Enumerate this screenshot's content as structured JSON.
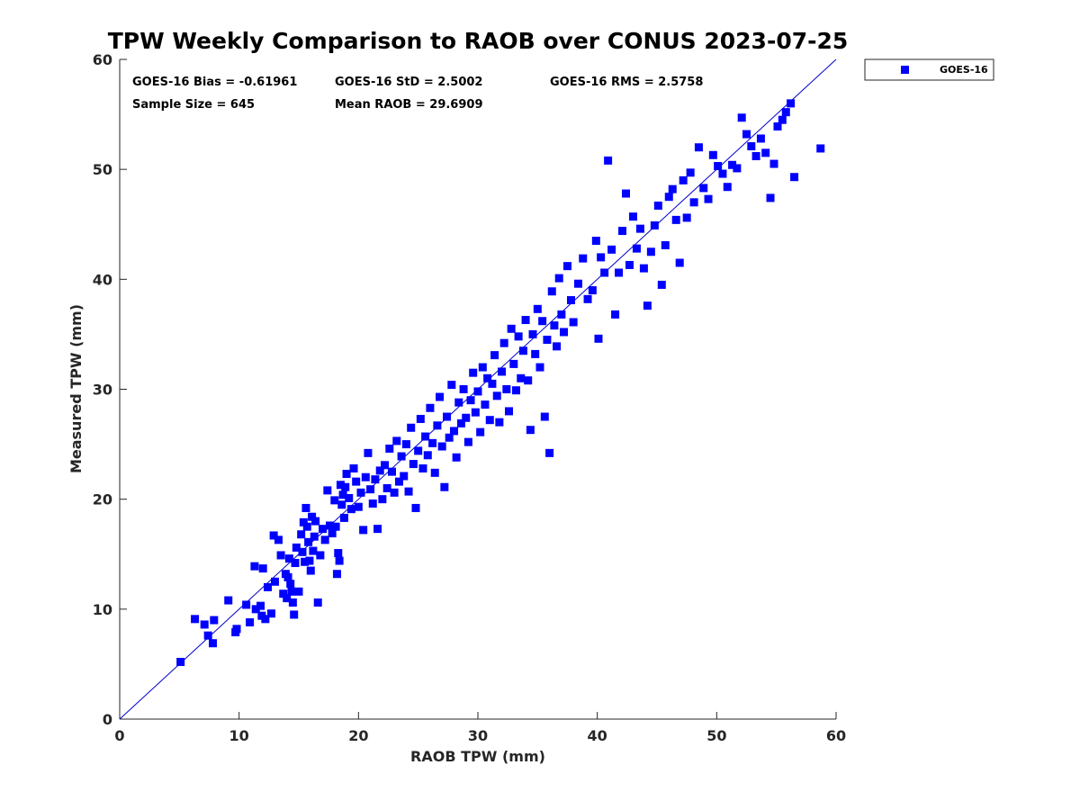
{
  "chart_data": {
    "type": "scatter",
    "title": "TPW Weekly Comparison to RAOB over CONUS 2023-07-25",
    "xlabel": "RAOB TPW (mm)",
    "ylabel": "Measured TPW (mm)",
    "xlim": [
      0,
      60
    ],
    "ylim": [
      0,
      60
    ],
    "xticks": [
      "0",
      "10",
      "20",
      "30",
      "40",
      "50",
      "60"
    ],
    "yticks": [
      "0",
      "10",
      "20",
      "30",
      "40",
      "50",
      "60"
    ],
    "grid": false,
    "legend_position": "outside-top-right",
    "reference_line": {
      "label": "1:1",
      "from": [
        0,
        0
      ],
      "to": [
        60,
        60
      ],
      "color": "#0000cc"
    },
    "stats": {
      "bias": "GOES-16 Bias = -0.61961",
      "std": "GOES-16 StD = 2.5002",
      "rms": "GOES-16 RMS = 2.5758",
      "sample_size": "Sample Size = 645",
      "mean_raob": "Mean RAOB = 29.6909"
    },
    "series": [
      {
        "name": "GOES-16",
        "color": "#0000ff",
        "marker": "square",
        "points": [
          [
            5.1,
            5.2
          ],
          [
            6.3,
            9.1
          ],
          [
            7.1,
            8.6
          ],
          [
            7.4,
            7.6
          ],
          [
            7.8,
            6.9
          ],
          [
            7.9,
            9.0
          ],
          [
            9.1,
            10.8
          ],
          [
            9.8,
            8.2
          ],
          [
            9.7,
            7.9
          ],
          [
            10.6,
            10.4
          ],
          [
            10.9,
            8.8
          ],
          [
            11.3,
            13.9
          ],
          [
            11.4,
            10.0
          ],
          [
            11.8,
            10.3
          ],
          [
            11.9,
            9.4
          ],
          [
            12.0,
            13.7
          ],
          [
            12.2,
            9.1
          ],
          [
            12.4,
            12.0
          ],
          [
            12.7,
            9.6
          ],
          [
            12.9,
            16.7
          ],
          [
            13.0,
            12.5
          ],
          [
            13.3,
            16.3
          ],
          [
            13.5,
            14.9
          ],
          [
            13.7,
            11.4
          ],
          [
            13.9,
            13.2
          ],
          [
            14.0,
            11.0
          ],
          [
            14.1,
            12.9
          ],
          [
            14.2,
            14.6
          ],
          [
            14.3,
            12.3
          ],
          [
            14.4,
            11.6
          ],
          [
            14.5,
            10.6
          ],
          [
            14.6,
            9.5
          ],
          [
            14.7,
            14.2
          ],
          [
            14.8,
            15.6
          ],
          [
            15.0,
            11.6
          ],
          [
            15.2,
            16.8
          ],
          [
            15.3,
            15.2
          ],
          [
            15.4,
            17.9
          ],
          [
            15.5,
            14.3
          ],
          [
            15.6,
            19.2
          ],
          [
            15.7,
            17.5
          ],
          [
            15.8,
            16.1
          ],
          [
            15.9,
            14.4
          ],
          [
            16.0,
            13.5
          ],
          [
            16.1,
            18.4
          ],
          [
            16.2,
            15.3
          ],
          [
            16.3,
            16.6
          ],
          [
            16.4,
            18.0
          ],
          [
            16.6,
            10.6
          ],
          [
            16.8,
            14.9
          ],
          [
            17.0,
            17.3
          ],
          [
            17.2,
            16.3
          ],
          [
            17.4,
            20.8
          ],
          [
            17.6,
            17.6
          ],
          [
            17.8,
            16.9
          ],
          [
            18.0,
            19.9
          ],
          [
            18.1,
            17.5
          ],
          [
            18.2,
            13.2
          ],
          [
            18.3,
            15.1
          ],
          [
            18.4,
            14.4
          ],
          [
            18.5,
            21.3
          ],
          [
            18.6,
            19.5
          ],
          [
            18.7,
            20.4
          ],
          [
            18.8,
            18.3
          ],
          [
            18.9,
            21.1
          ],
          [
            19.0,
            22.3
          ],
          [
            19.2,
            20.1
          ],
          [
            19.4,
            19.1
          ],
          [
            19.6,
            22.8
          ],
          [
            19.8,
            21.6
          ],
          [
            20.0,
            19.3
          ],
          [
            20.2,
            20.6
          ],
          [
            20.4,
            17.2
          ],
          [
            20.6,
            22.0
          ],
          [
            20.8,
            24.2
          ],
          [
            21.0,
            20.9
          ],
          [
            21.2,
            19.6
          ],
          [
            21.4,
            21.8
          ],
          [
            21.6,
            17.3
          ],
          [
            21.8,
            22.6
          ],
          [
            22.0,
            20.0
          ],
          [
            22.2,
            23.1
          ],
          [
            22.4,
            21.0
          ],
          [
            22.6,
            24.6
          ],
          [
            22.8,
            22.5
          ],
          [
            23.0,
            20.6
          ],
          [
            23.2,
            25.3
          ],
          [
            23.4,
            21.6
          ],
          [
            23.6,
            23.9
          ],
          [
            23.8,
            22.1
          ],
          [
            24.0,
            25.0
          ],
          [
            24.2,
            20.7
          ],
          [
            24.4,
            26.5
          ],
          [
            24.6,
            23.2
          ],
          [
            24.8,
            19.2
          ],
          [
            25.0,
            24.4
          ],
          [
            25.2,
            27.3
          ],
          [
            25.4,
            22.8
          ],
          [
            25.6,
            25.7
          ],
          [
            25.8,
            24.0
          ],
          [
            26.0,
            28.3
          ],
          [
            26.2,
            25.1
          ],
          [
            26.4,
            22.4
          ],
          [
            26.6,
            26.7
          ],
          [
            26.8,
            29.3
          ],
          [
            27.0,
            24.8
          ],
          [
            27.2,
            21.1
          ],
          [
            27.4,
            27.5
          ],
          [
            27.6,
            25.6
          ],
          [
            27.8,
            30.4
          ],
          [
            28.0,
            26.2
          ],
          [
            28.2,
            23.8
          ],
          [
            28.4,
            28.8
          ],
          [
            28.6,
            26.9
          ],
          [
            28.8,
            30.0
          ],
          [
            29.0,
            27.4
          ],
          [
            29.2,
            25.2
          ],
          [
            29.4,
            29.0
          ],
          [
            29.6,
            31.5
          ],
          [
            29.8,
            27.9
          ],
          [
            30.0,
            29.8
          ],
          [
            30.2,
            26.1
          ],
          [
            30.4,
            32.0
          ],
          [
            30.6,
            28.6
          ],
          [
            30.8,
            31.0
          ],
          [
            31.0,
            27.2
          ],
          [
            31.2,
            30.5
          ],
          [
            31.4,
            33.1
          ],
          [
            31.6,
            29.4
          ],
          [
            31.8,
            27.0
          ],
          [
            32.0,
            31.6
          ],
          [
            32.2,
            34.2
          ],
          [
            32.4,
            30.0
          ],
          [
            32.6,
            28.0
          ],
          [
            32.8,
            35.5
          ],
          [
            33.0,
            32.3
          ],
          [
            33.2,
            29.9
          ],
          [
            33.4,
            34.8
          ],
          [
            33.6,
            31.0
          ],
          [
            33.8,
            33.5
          ],
          [
            34.0,
            36.3
          ],
          [
            34.2,
            30.8
          ],
          [
            34.4,
            26.3
          ],
          [
            34.6,
            35.0
          ],
          [
            34.8,
            33.2
          ],
          [
            35.0,
            37.3
          ],
          [
            35.2,
            32.0
          ],
          [
            35.4,
            36.2
          ],
          [
            35.6,
            27.5
          ],
          [
            35.8,
            34.5
          ],
          [
            36.0,
            24.2
          ],
          [
            36.2,
            38.9
          ],
          [
            36.4,
            35.8
          ],
          [
            36.6,
            33.9
          ],
          [
            36.8,
            40.1
          ],
          [
            37.0,
            36.8
          ],
          [
            37.2,
            35.2
          ],
          [
            37.5,
            41.2
          ],
          [
            37.8,
            38.1
          ],
          [
            38.0,
            36.1
          ],
          [
            38.4,
            39.6
          ],
          [
            38.8,
            41.9
          ],
          [
            39.2,
            38.2
          ],
          [
            39.6,
            39.0
          ],
          [
            39.9,
            43.5
          ],
          [
            40.1,
            34.6
          ],
          [
            40.3,
            42.0
          ],
          [
            40.6,
            40.6
          ],
          [
            40.9,
            50.8
          ],
          [
            41.2,
            42.7
          ],
          [
            41.5,
            36.8
          ],
          [
            41.8,
            40.6
          ],
          [
            42.1,
            44.4
          ],
          [
            42.4,
            47.8
          ],
          [
            42.7,
            41.3
          ],
          [
            43.0,
            45.7
          ],
          [
            43.3,
            42.8
          ],
          [
            43.6,
            44.6
          ],
          [
            43.9,
            41.0
          ],
          [
            44.2,
            37.6
          ],
          [
            44.5,
            42.5
          ],
          [
            44.8,
            44.9
          ],
          [
            45.1,
            46.7
          ],
          [
            45.4,
            39.5
          ],
          [
            45.7,
            43.1
          ],
          [
            46.0,
            47.5
          ],
          [
            46.3,
            48.2
          ],
          [
            46.6,
            45.4
          ],
          [
            46.9,
            41.5
          ],
          [
            47.2,
            49.0
          ],
          [
            47.5,
            45.6
          ],
          [
            47.8,
            49.7
          ],
          [
            48.1,
            47.0
          ],
          [
            48.5,
            52.0
          ],
          [
            48.9,
            48.3
          ],
          [
            49.3,
            47.3
          ],
          [
            49.7,
            51.3
          ],
          [
            50.1,
            50.3
          ],
          [
            50.5,
            49.6
          ],
          [
            50.9,
            48.4
          ],
          [
            51.3,
            50.4
          ],
          [
            51.7,
            50.1
          ],
          [
            52.1,
            54.7
          ],
          [
            52.5,
            53.2
          ],
          [
            52.9,
            52.1
          ],
          [
            53.3,
            51.2
          ],
          [
            53.7,
            52.8
          ],
          [
            54.1,
            51.5
          ],
          [
            54.5,
            47.4
          ],
          [
            54.8,
            50.5
          ],
          [
            55.1,
            53.9
          ],
          [
            55.5,
            54.5
          ],
          [
            55.8,
            55.2
          ],
          [
            56.2,
            56.0
          ],
          [
            56.5,
            49.3
          ],
          [
            58.7,
            51.9
          ]
        ]
      }
    ]
  }
}
